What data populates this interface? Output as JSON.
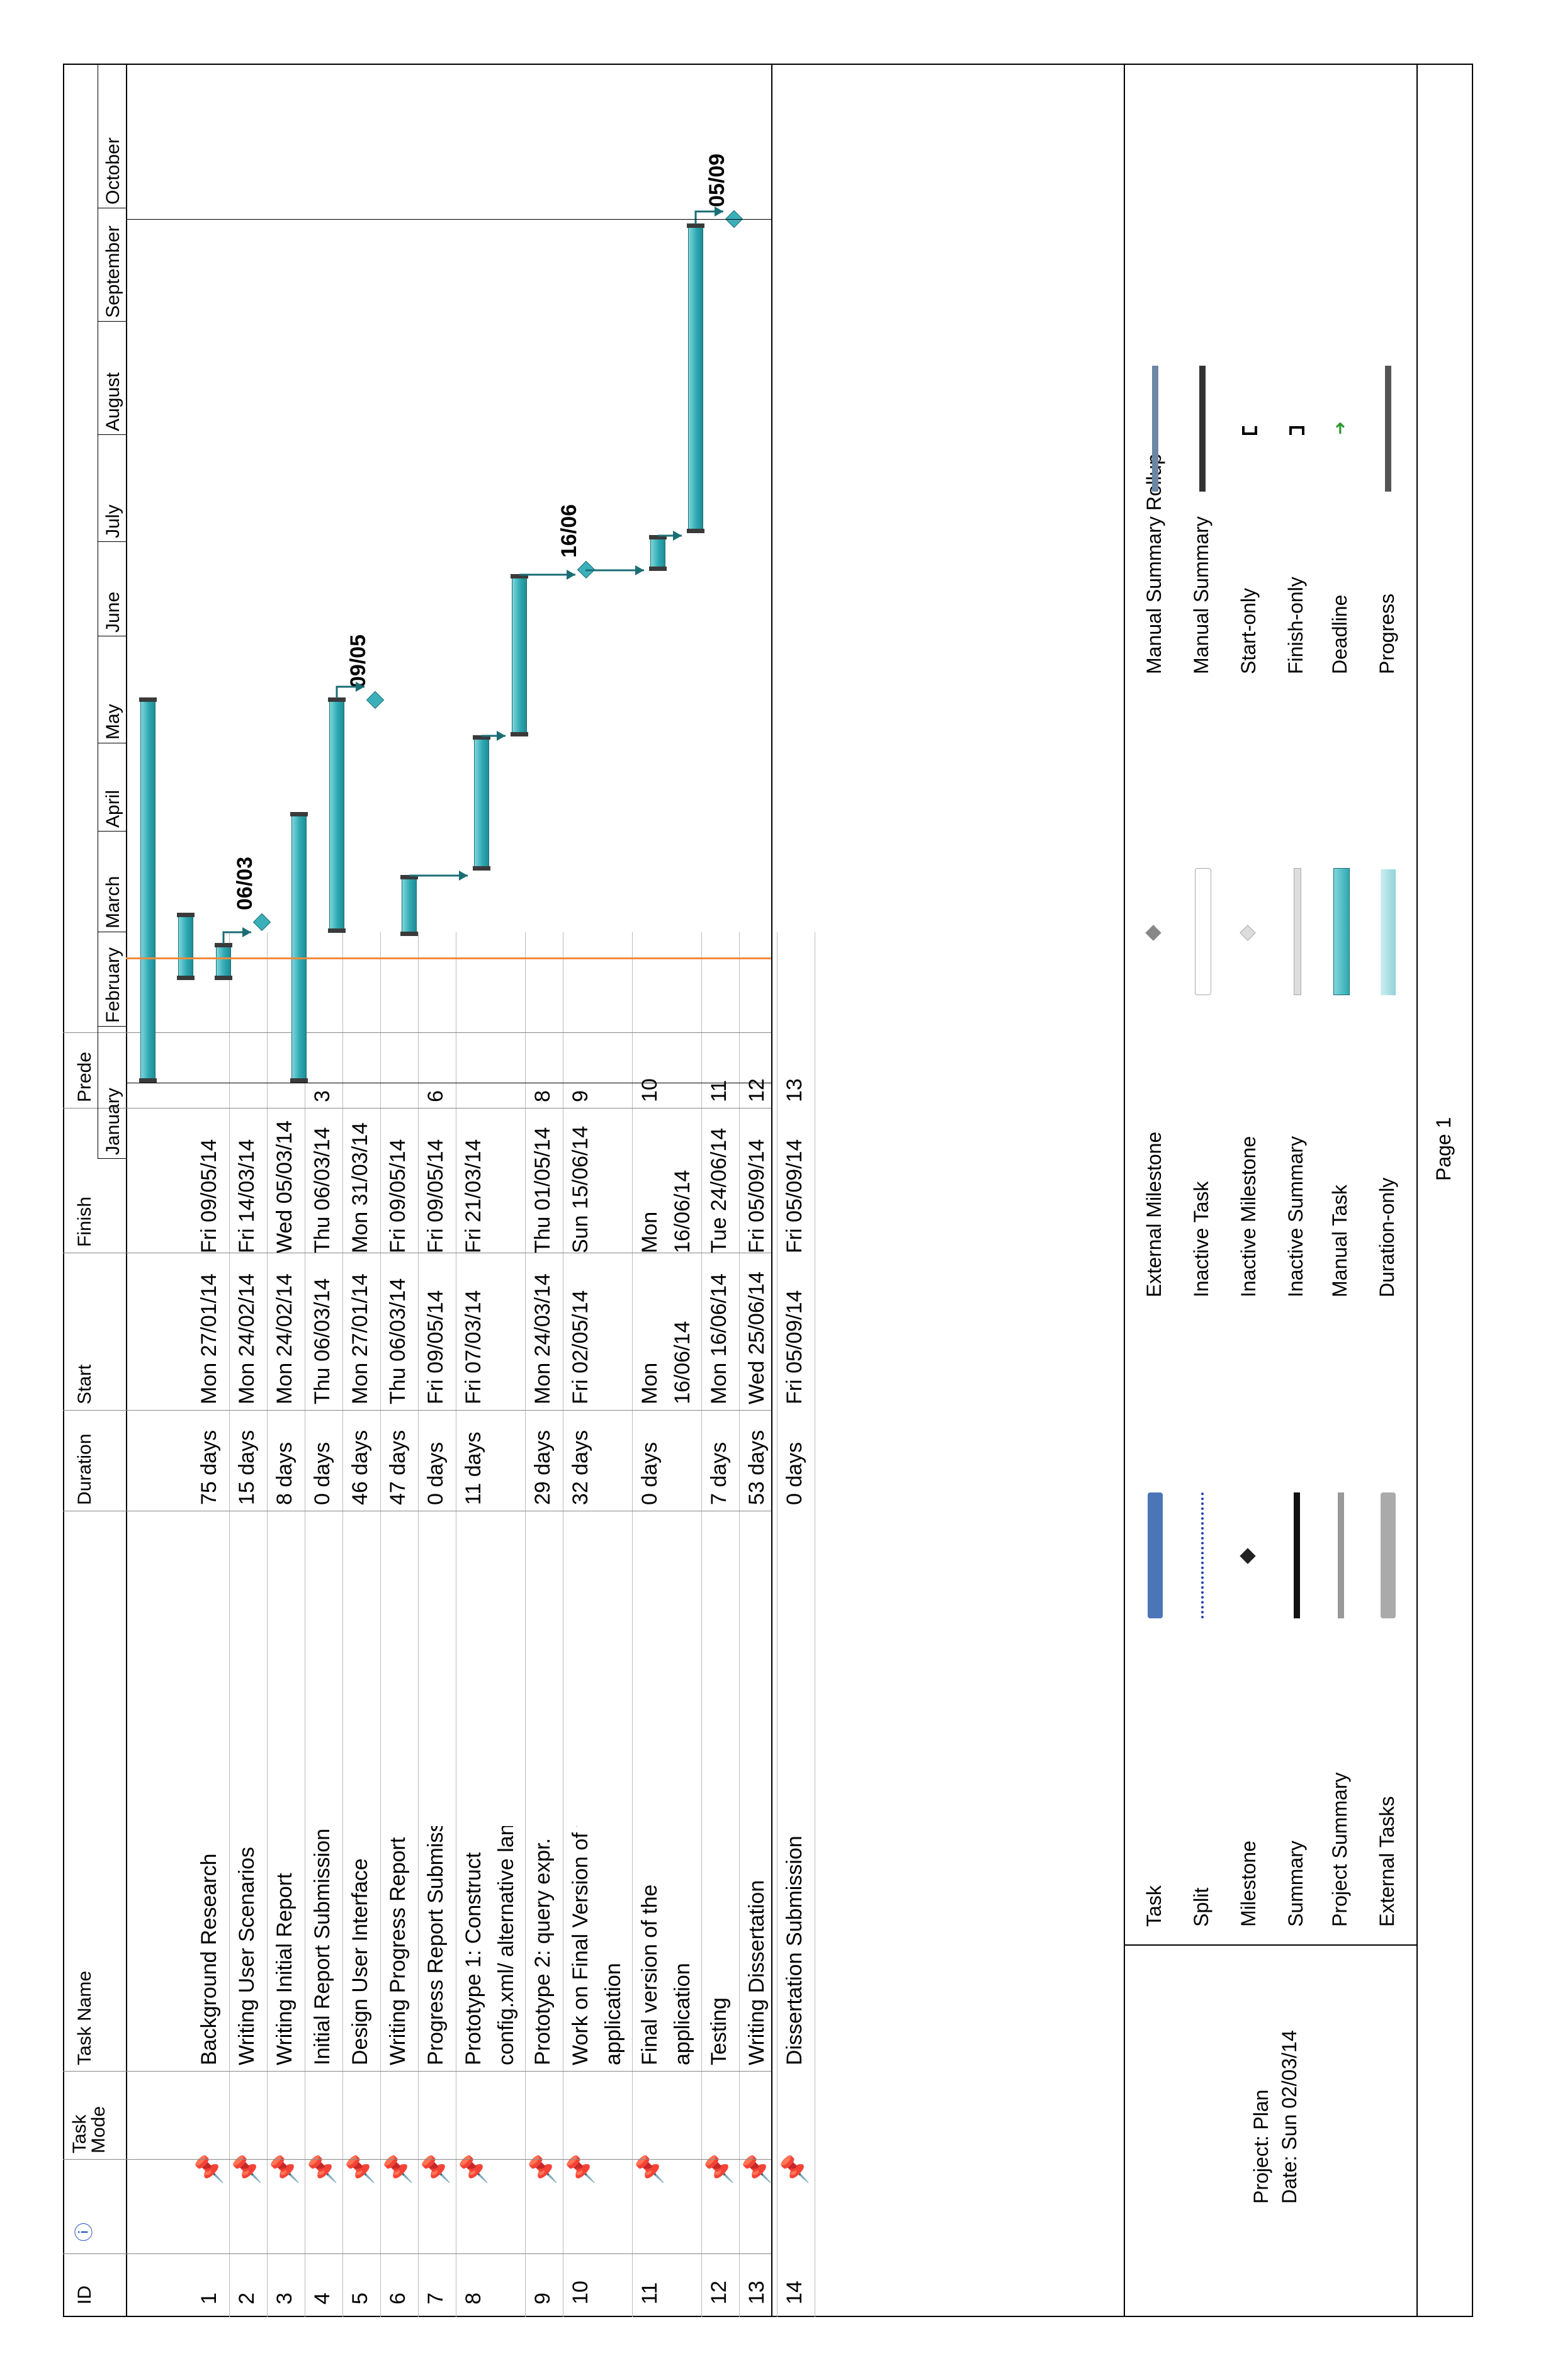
{
  "table": {
    "headers": {
      "id": "ID",
      "mode": "Task\nMode",
      "name": "Task Name",
      "duration": "Duration",
      "start": "Start",
      "finish": "Finish",
      "pred": "Prede"
    },
    "rows": [
      {
        "id": "1",
        "name": "Background Research",
        "duration": "75 days",
        "start": "Mon 27/01/14",
        "finish": "Fri 09/05/14",
        "pred": ""
      },
      {
        "id": "2",
        "name": "Writing User Scenarios",
        "duration": "15 days",
        "start": "Mon 24/02/14",
        "finish": "Fri 14/03/14",
        "pred": ""
      },
      {
        "id": "3",
        "name": "Writing Initial Report",
        "duration": "8 days",
        "start": "Mon 24/02/14",
        "finish": "Wed 05/03/14",
        "pred": ""
      },
      {
        "id": "4",
        "name": "Initial Report Submission",
        "duration": "0 days",
        "start": "Thu 06/03/14",
        "finish": "Thu 06/03/14",
        "pred": "3"
      },
      {
        "id": "5",
        "name": "Design User Interface",
        "duration": "46 days",
        "start": "Mon 27/01/14",
        "finish": "Mon 31/03/14",
        "pred": ""
      },
      {
        "id": "6",
        "name": "Writing Progress Report",
        "duration": "47 days",
        "start": "Thu 06/03/14",
        "finish": "Fri 09/05/14",
        "pred": ""
      },
      {
        "id": "7",
        "name": "Progress Report Submission",
        "duration": "0 days",
        "start": "Fri 09/05/14",
        "finish": "Fri 09/05/14",
        "pred": "6"
      },
      {
        "id": "8",
        "name": "Prototype 1: Construct",
        "name2": "config.xml/ alternative lang",
        "duration": "11 days",
        "start": "Fri 07/03/14",
        "finish": "Fri 21/03/14",
        "pred": ""
      },
      {
        "id": "9",
        "name": "Prototype 2: query expr.",
        "duration": "29 days",
        "start": "Mon 24/03/14",
        "finish": "Thu 01/05/14",
        "pred": "8"
      },
      {
        "id": "10",
        "name": "Work on Final Version of the",
        "name2": "application",
        "duration": "32 days",
        "start": "Fri 02/05/14",
        "finish": "Sun 15/06/14",
        "pred": "9"
      },
      {
        "id": "11",
        "name": "Final version of the",
        "name2": "application",
        "duration": "0 days",
        "start": "Mon",
        "start2": "16/06/14",
        "finish": "Mon",
        "finish2": "16/06/14",
        "pred": "10"
      },
      {
        "id": "12",
        "name": "Testing",
        "duration": "7 days",
        "start": "Mon 16/06/14",
        "finish": "Tue 24/06/14",
        "pred": "11"
      },
      {
        "id": "13",
        "name": "Writing Dissertation",
        "duration": "53 days",
        "start": "Wed 25/06/14",
        "finish": "Fri 05/09/14",
        "pred": "12"
      },
      {
        "id": "14",
        "name": "Dissertation Submission",
        "duration": "0 days",
        "start": "Fri 05/09/14",
        "finish": "Fri 05/09/14",
        "pred": "13"
      }
    ]
  },
  "timeline": {
    "months": [
      "January",
      "February",
      "March",
      "April",
      "May",
      "June",
      "July",
      "August",
      "September",
      "October"
    ],
    "milestone_labels": [
      "06/03",
      "09/05",
      "16/06",
      "05/09"
    ],
    "status_date": "02/03/14"
  },
  "footer": {
    "project": "Project: Plan",
    "date": "Date: Sun 02/03/14",
    "page": "Page 1",
    "legend_col1": [
      "Task",
      "Split",
      "Milestone",
      "Summary",
      "Project Summary",
      "External Tasks"
    ],
    "legend_col2": [
      "External Milestone",
      "Inactive Task",
      "Inactive Milestone",
      "Inactive Summary",
      "Manual Task",
      "Duration-only"
    ],
    "legend_col3": [
      "Manual Summary Rollup",
      "Manual Summary",
      "Start-only",
      "Finish-only",
      "Deadline",
      "Progress"
    ]
  },
  "colors": {
    "task_bar": "#2fa9b3",
    "status_line": "#f08a3c",
    "task_legend": "#4a76b8"
  }
}
